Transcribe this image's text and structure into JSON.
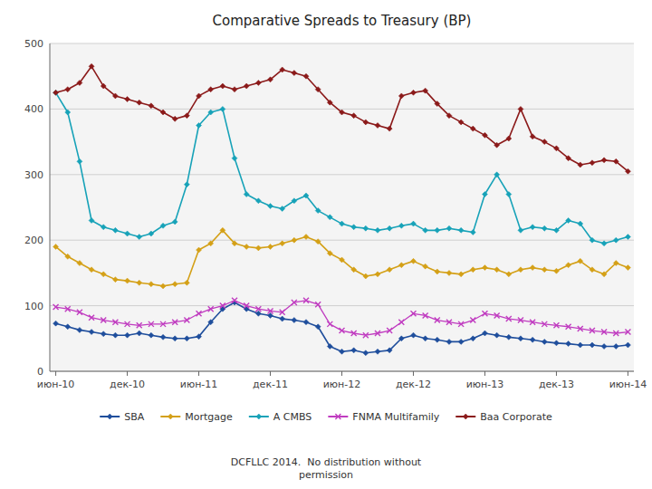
{
  "chart_data": {
    "type": "line",
    "title": "Comparative Spreads to Treasury (BP)",
    "categories": [
      "июн-10",
      null,
      null,
      null,
      null,
      null,
      "дек-10",
      null,
      null,
      null,
      null,
      null,
      "июн-11",
      null,
      null,
      null,
      null,
      null,
      "дек-11",
      null,
      null,
      null,
      null,
      null,
      "июн-12",
      null,
      null,
      null,
      null,
      null,
      "дек-12",
      null,
      null,
      null,
      null,
      null,
      "июн-13",
      null,
      null,
      null,
      null,
      null,
      "дек-13",
      null,
      null,
      null,
      null,
      null,
      "июн-14"
    ],
    "series": [
      {
        "name": "SBA",
        "color": "#1f4e9c",
        "marker": "diamond",
        "values": [
          73,
          68,
          63,
          60,
          57,
          55,
          55,
          58,
          55,
          52,
          50,
          50,
          53,
          75,
          95,
          105,
          95,
          88,
          85,
          80,
          78,
          75,
          68,
          38,
          30,
          32,
          28,
          30,
          32,
          50,
          55,
          50,
          48,
          45,
          45,
          50,
          58,
          55,
          52,
          50,
          48,
          45,
          43,
          42,
          40,
          40,
          38,
          38,
          40
        ]
      },
      {
        "name": "Mortgage",
        "color": "#d4a017",
        "marker": "diamond",
        "values": [
          190,
          175,
          165,
          155,
          148,
          140,
          138,
          135,
          133,
          130,
          133,
          135,
          185,
          195,
          215,
          195,
          190,
          188,
          190,
          195,
          200,
          205,
          198,
          180,
          170,
          155,
          145,
          148,
          155,
          162,
          168,
          160,
          152,
          150,
          148,
          155,
          158,
          155,
          148,
          155,
          158,
          155,
          153,
          162,
          168,
          155,
          148,
          165,
          158
        ]
      },
      {
        "name": "A CMBS",
        "color": "#17a2b8",
        "marker": "diamond",
        "values": [
          425,
          395,
          320,
          230,
          220,
          215,
          210,
          205,
          210,
          222,
          228,
          285,
          375,
          395,
          400,
          325,
          270,
          260,
          252,
          248,
          260,
          268,
          245,
          235,
          225,
          220,
          218,
          215,
          218,
          222,
          225,
          215,
          215,
          218,
          215,
          212,
          270,
          300,
          270,
          215,
          220,
          218,
          215,
          230,
          225,
          200,
          195,
          200,
          205
        ]
      },
      {
        "name": "FNMA Multifamily",
        "color": "#c03cc0",
        "marker": "x",
        "values": [
          98,
          95,
          90,
          82,
          78,
          75,
          72,
          70,
          72,
          72,
          75,
          78,
          88,
          95,
          100,
          108,
          100,
          95,
          92,
          90,
          105,
          108,
          102,
          72,
          62,
          58,
          55,
          58,
          62,
          75,
          88,
          85,
          78,
          75,
          72,
          78,
          88,
          85,
          80,
          78,
          75,
          72,
          70,
          68,
          65,
          62,
          60,
          58,
          60
        ]
      },
      {
        "name": "Baa Corporate",
        "color": "#8b1a1a",
        "marker": "diamond",
        "values": [
          425,
          430,
          440,
          465,
          435,
          420,
          415,
          410,
          405,
          395,
          385,
          390,
          420,
          430,
          435,
          430,
          435,
          440,
          445,
          460,
          455,
          450,
          430,
          410,
          395,
          390,
          380,
          375,
          370,
          420,
          425,
          428,
          408,
          390,
          380,
          370,
          360,
          345,
          355,
          400,
          358,
          350,
          340,
          325,
          315,
          318,
          322,
          320,
          305
        ]
      }
    ],
    "ylim": [
      0,
      500
    ],
    "yticks": [
      0,
      100,
      200,
      300,
      400,
      500
    ],
    "grid": true,
    "legend": "bottom",
    "annotations": [
      "DCFLLC 2014.  No distribution without\npermission"
    ]
  }
}
